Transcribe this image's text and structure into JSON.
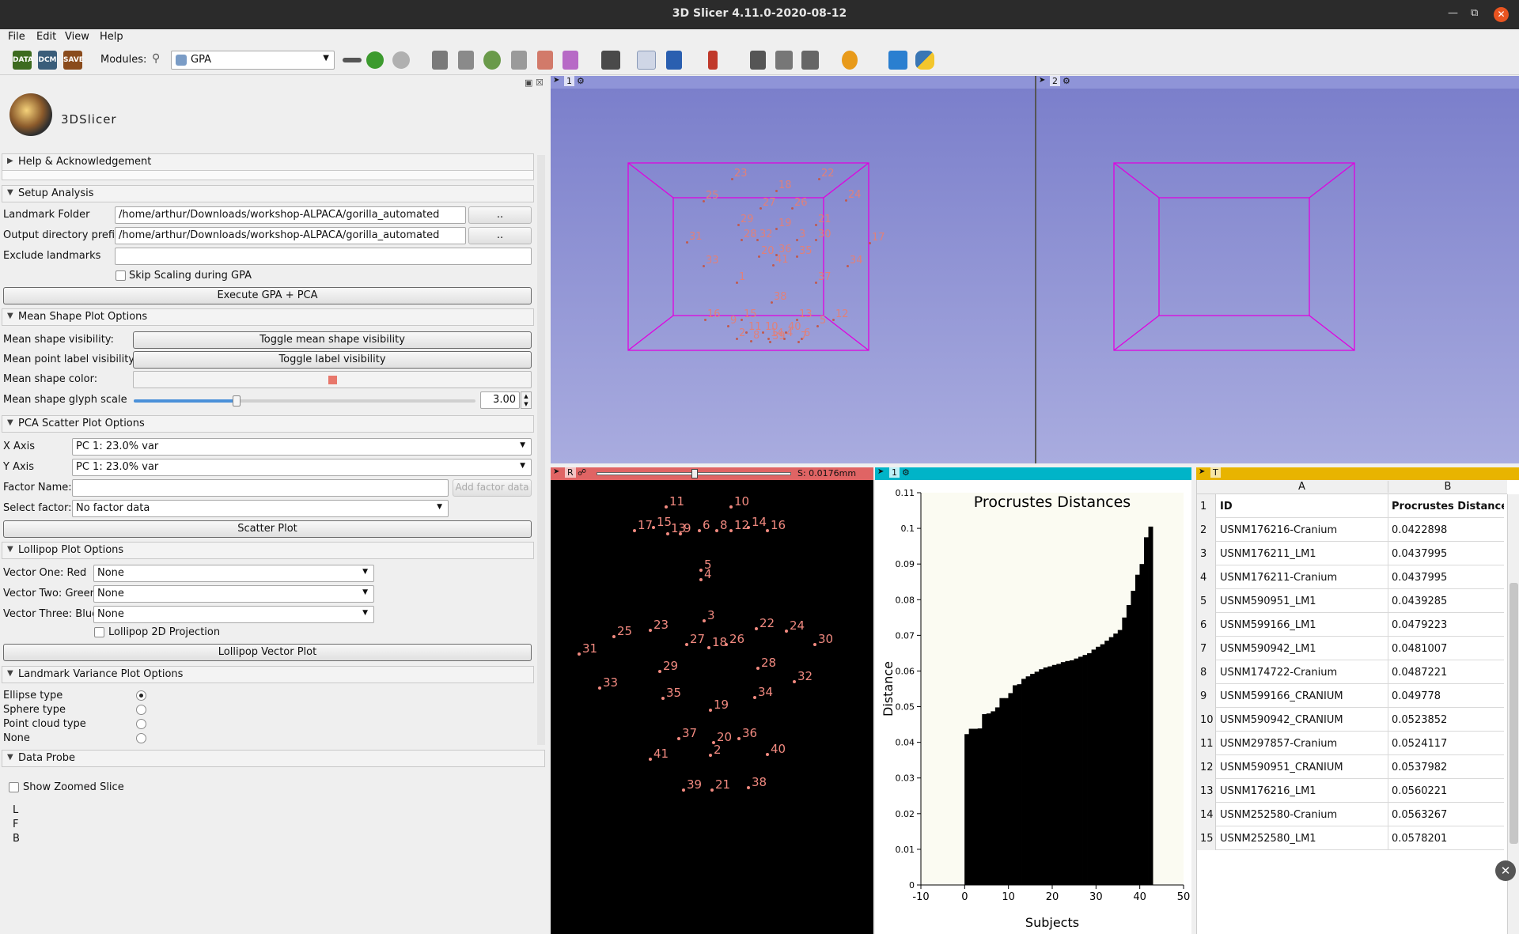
{
  "window": {
    "title": "3D Slicer 4.11.0-2020-08-12"
  },
  "menu": [
    "File",
    "Edit",
    "View",
    "Help"
  ],
  "toolbar": {
    "data_label": "DATA",
    "dcm_label": "DCM",
    "save_label": "SAVE",
    "modules_label": "Modules:",
    "module_value": "GPA"
  },
  "logo": {
    "text": "3DSlicer"
  },
  "sections": {
    "help": "Help & Acknowledgement",
    "setup": "Setup Analysis",
    "mean_shape": "Mean Shape Plot Options",
    "pca_scatter": "PCA Scatter Plot Options",
    "lollipop": "Lollipop Plot Options",
    "variance": "Landmark Variance Plot Options",
    "data_probe": "Data Probe"
  },
  "setup": {
    "landmark_folder_label": "Landmark Folder",
    "landmark_folder_value": "/home/arthur/Downloads/workshop-ALPACA/gorilla_automated",
    "output_prefix_label": "Output directory prefix",
    "output_prefix_value": "/home/arthur/Downloads/workshop-ALPACA/gorilla_automated",
    "browse_label": "..",
    "exclude_label": "Exclude landmarks",
    "exclude_value": "",
    "skip_scaling_label": "Skip Scaling during GPA",
    "execute_label": "Execute GPA + PCA"
  },
  "mean_shape": {
    "visibility_label": "Mean shape visibility:",
    "visibility_button": "Toggle mean shape visibility",
    "label_visibility_label": "Mean point label visibility:",
    "label_visibility_button": "Toggle label visibility",
    "color_label": "Mean shape color:",
    "color": "#e8776b",
    "glyph_label": "Mean shape glyph scale",
    "glyph_value": "3.00",
    "glyph_fraction": 0.3
  },
  "pca": {
    "x_label": "X Axis",
    "x_value": "PC 1: 23.0% var",
    "y_label": "Y Axis",
    "y_value": "PC 1: 23.0% var",
    "factor_name_label": "Factor Name:",
    "factor_name_value": "",
    "add_factor_label": "Add factor data",
    "select_factor_label": "Select factor:",
    "select_factor_value": "No factor data",
    "scatter_button": "Scatter Plot"
  },
  "lollipop": {
    "v1_label": "Vector One: Red",
    "v1_value": "None",
    "v2_label": "Vector Two: Green",
    "v2_value": "None",
    "v3_label": "Vector Three: Blue",
    "v3_value": "None",
    "proj_label": "Lollipop 2D Projection",
    "button": "Lollipop Vector Plot"
  },
  "variance": {
    "options": [
      "Ellipse type",
      "Sphere type",
      "Point cloud type",
      "None"
    ],
    "selected": 0
  },
  "data_probe": {
    "show_zoomed": "Show Zoomed Slice",
    "lines": [
      "L",
      "F",
      "B"
    ]
  },
  "views": {
    "view1_label": "1",
    "view2_label": "2",
    "slice_label": "R",
    "slice_offset": "S: 0.0176mm",
    "slice_fraction": 0.5,
    "plot_label": "1",
    "table_label": "T",
    "view3d_color": "#7b7fcb",
    "slice_color": "#e06464",
    "plot_bar_color": "#00b4c8",
    "table_bar_color": "#e8b400",
    "box_color": "#e000e0"
  },
  "landmarks_3d": [
    "23",
    "18",
    "22",
    "25",
    "27",
    "26",
    "24",
    "29",
    "19",
    "21",
    "31",
    "28",
    "32",
    "3",
    "30",
    "17",
    "33",
    "20",
    "36",
    "35",
    "34",
    "1",
    "37",
    "38",
    "16",
    "15",
    "13",
    "12",
    "9",
    "5",
    "11",
    "10",
    "2",
    "8",
    "14",
    "4",
    "6",
    "7",
    "39",
    "40",
    "41"
  ],
  "landmarks_slice": [
    "11",
    "10",
    "17",
    "15",
    "13",
    "9",
    "6",
    "8",
    "12",
    "14",
    "16",
    "5",
    "4",
    "3",
    "25",
    "23",
    "22",
    "24",
    "31",
    "27",
    "18",
    "26",
    "30",
    "29",
    "28",
    "32",
    "33",
    "35",
    "34",
    "19",
    "37",
    "36",
    "20",
    "2",
    "40",
    "41",
    "39",
    "21",
    "38"
  ],
  "chart_data": {
    "type": "bar",
    "title": "Procrustes Distances",
    "xlabel": "Subjects",
    "ylabel": "Distance",
    "xlim": [
      -10,
      50
    ],
    "ylim": [
      0,
      0.11
    ],
    "xticks": [
      "-10",
      "0",
      "10",
      "20",
      "30",
      "40",
      "50"
    ],
    "yticks": [
      "0",
      "0.01",
      "0.02",
      "0.03",
      "0.04",
      "0.05",
      "0.06",
      "0.07",
      "0.08",
      "0.09",
      "0.1",
      "0.11"
    ],
    "values": [
      0.0423,
      0.0438,
      0.0438,
      0.0439,
      0.0479,
      0.0481,
      0.0487,
      0.0498,
      0.0524,
      0.0524,
      0.0538,
      0.056,
      0.0563,
      0.0578,
      0.0585,
      0.0592,
      0.0598,
      0.0605,
      0.061,
      0.0613,
      0.0617,
      0.062,
      0.0625,
      0.0628,
      0.063,
      0.0635,
      0.064,
      0.0645,
      0.065,
      0.066,
      0.0668,
      0.0675,
      0.0685,
      0.0695,
      0.0705,
      0.0715,
      0.075,
      0.0785,
      0.0825,
      0.087,
      0.09,
      0.0975,
      0.1005
    ]
  },
  "table": {
    "col_letters": [
      "A",
      "B"
    ],
    "header": [
      "ID",
      "Procrustes Distance"
    ],
    "rows": [
      [
        "USNM176216-Cranium",
        "0.0422898"
      ],
      [
        "USNM176211_LM1",
        "0.0437995"
      ],
      [
        "USNM176211-Cranium",
        "0.0437995"
      ],
      [
        "USNM590951_LM1",
        "0.0439285"
      ],
      [
        "USNM599166_LM1",
        "0.0479223"
      ],
      [
        "USNM590942_LM1",
        "0.0481007"
      ],
      [
        "USNM174722-Cranium",
        "0.0487221"
      ],
      [
        "USNM599166_CRANIUM",
        "0.049778"
      ],
      [
        "USNM590942_CRANIUM",
        "0.0523852"
      ],
      [
        "USNM297857-Cranium",
        "0.0524117"
      ],
      [
        "USNM590951_CRANIUM",
        "0.0537982"
      ],
      [
        "USNM176216_LM1",
        "0.0560221"
      ],
      [
        "USNM252580-Cranium",
        "0.0563267"
      ],
      [
        "USNM252580_LM1",
        "0.0578201"
      ]
    ]
  }
}
